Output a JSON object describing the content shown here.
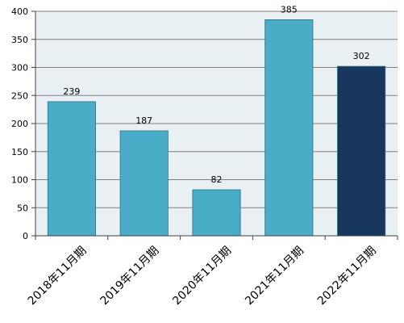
{
  "chart_data": {
    "type": "bar",
    "categories": [
      "2018年11月期",
      "2019年11月期",
      "2020年11月期",
      "2021年11月期",
      "2022年11月期"
    ],
    "values": [
      239,
      187,
      82,
      385,
      302
    ],
    "ylim": [
      0,
      400
    ],
    "yticks": [
      0,
      50,
      100,
      150,
      200,
      250,
      300,
      350,
      400
    ],
    "grid": true,
    "colors": {
      "bar": "#4aadc8",
      "bar_highlight": "#17375e",
      "plot_background": "#e8f0f4",
      "grid": "#7f7f7f",
      "axis": "#404040"
    },
    "highlight_index": 4
  }
}
